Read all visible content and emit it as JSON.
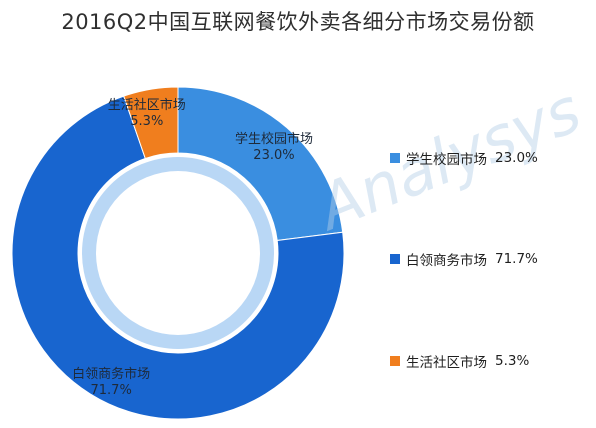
{
  "title": "2016Q2中国互联网餐饮外卖各细分市场交易份额",
  "watermark": "Analysys",
  "chart_data": {
    "type": "pie",
    "title": "2016Q2中国互联网餐饮外卖各细分市场交易份额",
    "legend_position": "right",
    "slices": [
      {
        "label": "学生校园市场",
        "value": 23.0,
        "value_label": "23.0%",
        "color": "#3a8ee0"
      },
      {
        "label": "白领商务市场",
        "value": 71.7,
        "value_label": "71.7%",
        "color": "#1865cf"
      },
      {
        "label": "生活社区市场",
        "value": 5.3,
        "value_label": "5.3%",
        "color": "#f07e1e"
      }
    ]
  }
}
